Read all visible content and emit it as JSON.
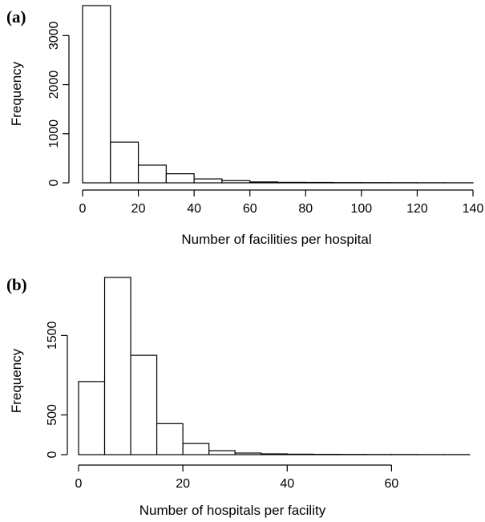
{
  "chart_data": [
    {
      "type": "bar",
      "panel_label": "(a)",
      "xlabel": "Number of facilities per hospital",
      "ylabel": "Frequency",
      "bin_edges": [
        0,
        10,
        20,
        30,
        40,
        50,
        60,
        70,
        80,
        90,
        100,
        110,
        120,
        130,
        140
      ],
      "values": [
        3610,
        830,
        360,
        185,
        80,
        45,
        18,
        10,
        8,
        5,
        4,
        3,
        2,
        1
      ],
      "xlim": [
        0,
        140
      ],
      "ylim": [
        0,
        3610
      ],
      "x_ticks": [
        "0",
        "20",
        "40",
        "60",
        "80",
        "100",
        "120",
        "140"
      ],
      "y_ticks": [
        "0",
        "1000",
        "2000",
        "3000"
      ]
    },
    {
      "type": "bar",
      "panel_label": "(b)",
      "xlabel": "Number of hospitals per facility",
      "ylabel": "Frequency",
      "bin_edges": [
        0,
        5,
        10,
        15,
        20,
        25,
        30,
        35,
        40,
        45,
        50,
        55,
        60,
        65,
        70,
        75
      ],
      "values": [
        920,
        2230,
        1250,
        390,
        140,
        50,
        20,
        10,
        6,
        4,
        3,
        2,
        2,
        1,
        1
      ],
      "xlim": [
        0,
        75
      ],
      "ylim": [
        0,
        2230
      ],
      "x_ticks": [
        "0",
        "20",
        "40",
        "60"
      ],
      "y_ticks": [
        "0",
        "500",
        "1500"
      ]
    }
  ]
}
